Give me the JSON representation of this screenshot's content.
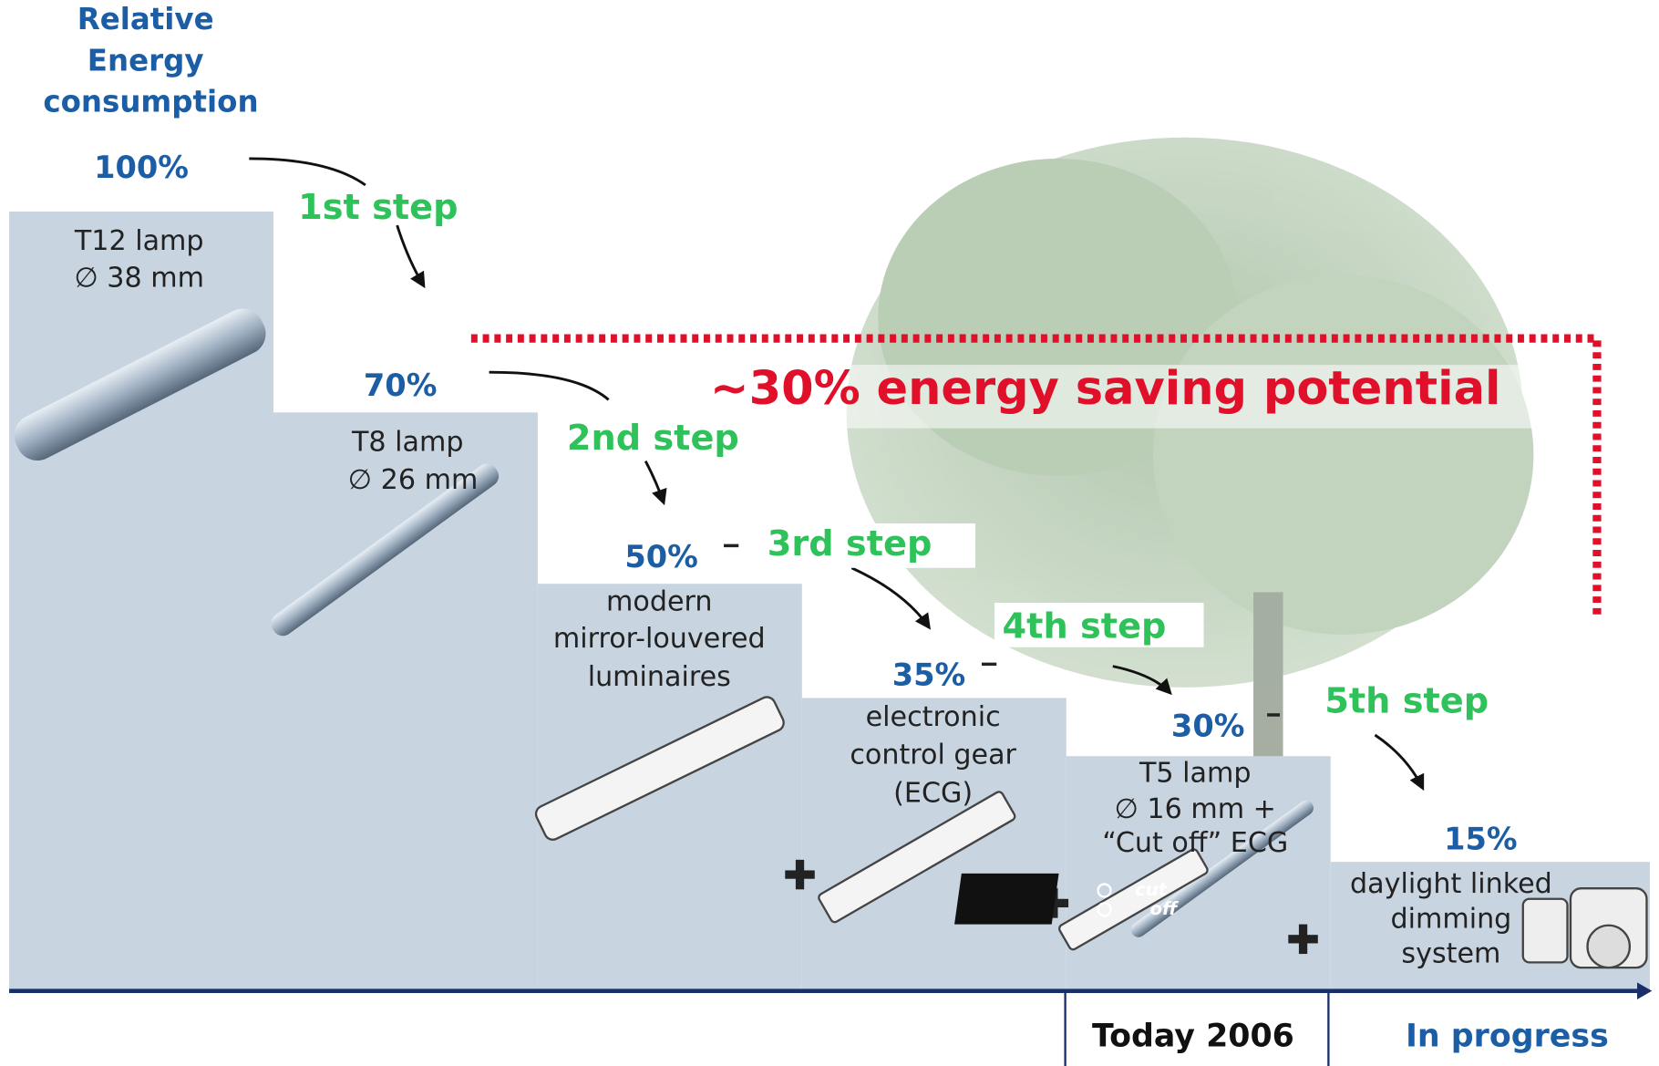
{
  "header": {
    "lines": [
      "Relative",
      "Energy",
      "consumption"
    ]
  },
  "levels": [
    {
      "value": "100%",
      "lines": [
        "T12 lamp",
        "∅ 38 mm"
      ]
    },
    {
      "value": "70%",
      "lines": [
        "T8 lamp",
        "∅ 26 mm"
      ]
    },
    {
      "value": "50%",
      "lines": [
        "modern",
        "mirror-louvered",
        "luminaires"
      ]
    },
    {
      "value": "35%",
      "lines": [
        "electronic",
        "control gear",
        "(ECG)"
      ]
    },
    {
      "value": "30%",
      "lines": [
        "T5 lamp",
        "∅ 16 mm  +",
        "“Cut off” ECG"
      ]
    },
    {
      "value": "15%",
      "lines": [
        "daylight linked",
        "dimming",
        "system"
      ]
    }
  ],
  "steps": [
    "1st step",
    "2nd step",
    "3rd step",
    "4th step",
    "5th step"
  ],
  "saving": "~30% energy saving potential",
  "timeline": [
    "Today 2006",
    "In progress"
  ],
  "icon": [
    "cut",
    "off"
  ]
}
